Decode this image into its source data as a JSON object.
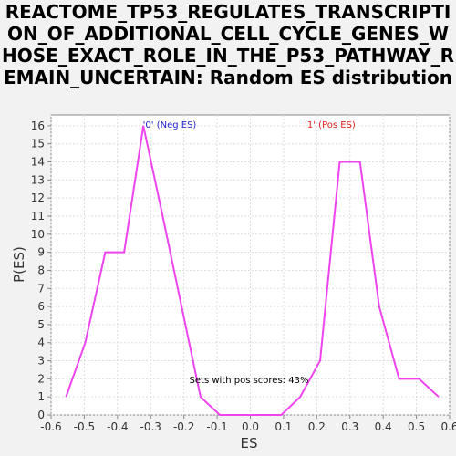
{
  "chart_data": {
    "type": "line",
    "title": "REACTOME_TP53_REGULATES_TRANSCRIPTION_OF_ADDITIONAL_CELL_CYCLE_GENES_WHOSE_EXACT_ROLE_IN_THE_P53_PATHWAY_REMAIN_UNCERTAIN: Random ES distribution",
    "xlabel": "ES",
    "ylabel": "P(ES)",
    "xlim": [
      -0.6,
      0.6
    ],
    "ylim": [
      0,
      16.6
    ],
    "xticks": [
      "-0.6",
      "-0.5",
      "-0.4",
      "-0.3",
      "-0.2",
      "-0.1",
      "0.0",
      "0.1",
      "0.2",
      "0.3",
      "0.4",
      "0.5",
      "0.6"
    ],
    "yticks": [
      "0",
      "1",
      "2",
      "3",
      "4",
      "5",
      "6",
      "7",
      "8",
      "9",
      "10",
      "11",
      "12",
      "13",
      "14",
      "15",
      "16"
    ],
    "grid": true,
    "series": [
      {
        "color": "#ee44ee",
        "x": [
          -0.555,
          -0.497,
          -0.437,
          -0.38,
          -0.322,
          -0.264,
          -0.207,
          -0.15,
          -0.092,
          -0.035,
          0.023,
          0.093,
          0.15,
          0.21,
          0.269,
          0.33,
          0.388,
          0.448,
          0.508,
          0.567
        ],
        "y": [
          1,
          4,
          9,
          9,
          16,
          11,
          6,
          1,
          0,
          0,
          0,
          0,
          1,
          3,
          14,
          14,
          6,
          2,
          2,
          1
        ]
      }
    ],
    "annotations": {
      "neg": {
        "text": "'0' (Neg ES)",
        "color": "#2222cc"
      },
      "pos": {
        "text": "'1' (Pos ES)",
        "color": "#dd2222"
      },
      "pos_scores": {
        "text": "Sets with pos scores: 43%"
      }
    }
  }
}
